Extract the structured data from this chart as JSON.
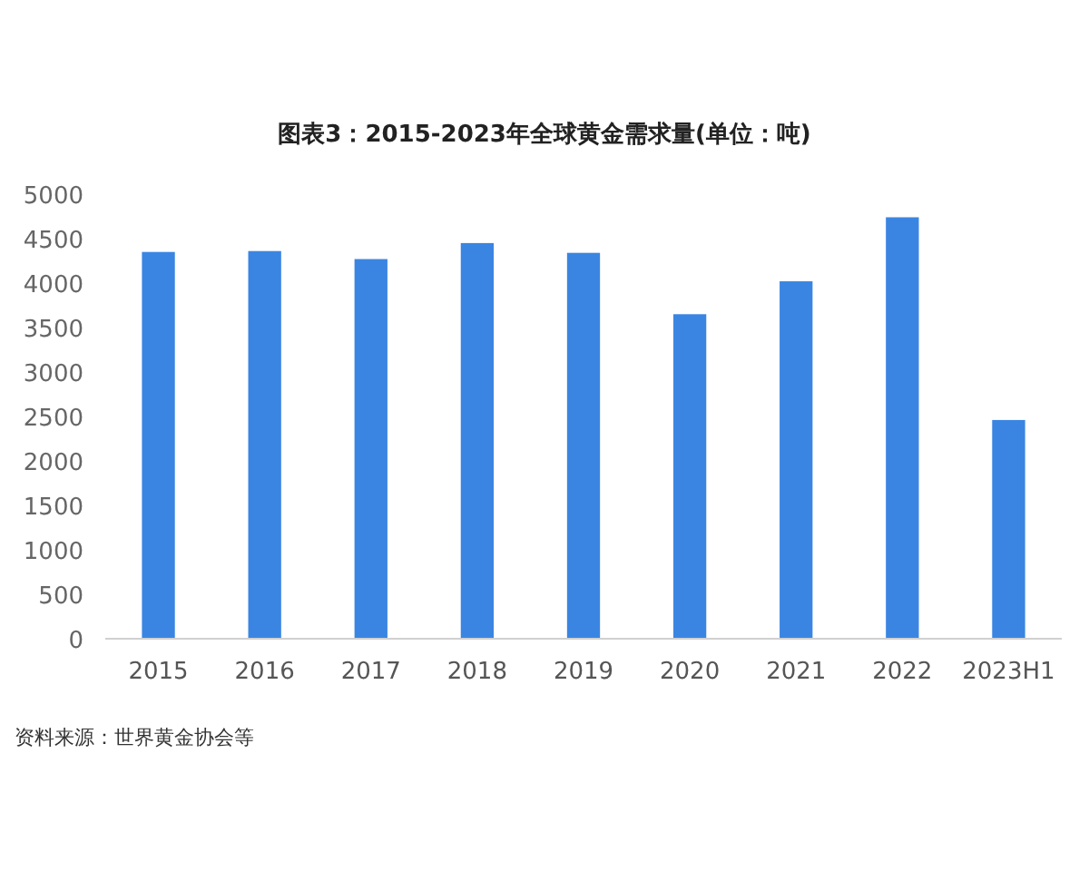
{
  "chart_data": {
    "type": "bar",
    "title": "图表3：2015-2023年全球黄金需求量(单位：吨)",
    "categories": [
      "2015",
      "2016",
      "2017",
      "2018",
      "2019",
      "2020",
      "2021",
      "2022",
      "2023H1"
    ],
    "values": [
      4350,
      4360,
      4270,
      4450,
      4340,
      3650,
      4020,
      4740,
      2460
    ],
    "color": "#3a85e2",
    "ylim": [
      0,
      5000
    ],
    "yticks": [
      0,
      500,
      1000,
      1500,
      2000,
      2500,
      3000,
      3500,
      4000,
      4500,
      5000
    ],
    "grid": false,
    "annotations": [
      "资料来源：世界黄金协会等"
    ]
  }
}
